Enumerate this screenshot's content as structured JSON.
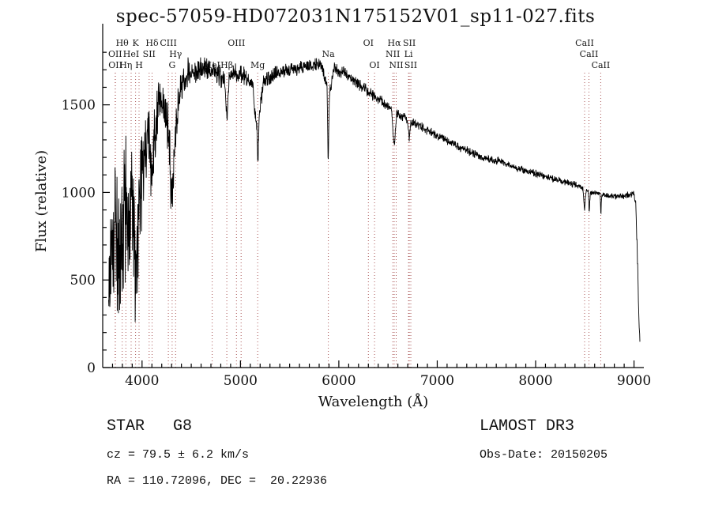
{
  "chart_data": {
    "type": "line",
    "title": "spec-57059-HD072031N175152V01_sp11-027.fits",
    "xlabel": "Wavelength (Å)",
    "ylabel": "Flux (relative)",
    "xlim": [
      3600,
      9100
    ],
    "ylim": [
      0,
      1900
    ],
    "xticks": [
      4000,
      5000,
      6000,
      7000,
      8000,
      9000
    ],
    "yticks": [
      0,
      500,
      1000,
      1500
    ],
    "grid": false,
    "legend": false,
    "line_color": "#000000",
    "marker_color": "#aa5555",
    "noise_seed": 20150205,
    "spectral_lines": [
      {
        "label": "Hθ",
        "wavelength": 3798,
        "row": 0
      },
      {
        "label": "K",
        "wavelength": 3934,
        "row": 0
      },
      {
        "label": "Hδ",
        "wavelength": 4102,
        "row": 0
      },
      {
        "label": "OII",
        "wavelength": 3727,
        "row": 1
      },
      {
        "label": "HeI",
        "wavelength": 3889,
        "row": 1
      },
      {
        "label": "SII",
        "wavelength": 4072,
        "row": 1
      },
      {
        "label": "OII",
        "wavelength": 3729,
        "row": 2
      },
      {
        "label": "Hη",
        "wavelength": 3835,
        "row": 2
      },
      {
        "label": "H",
        "wavelength": 3969,
        "row": 2
      },
      {
        "label": "CIII",
        "wavelength": 4267,
        "row": 0
      },
      {
        "label": "Hγ",
        "wavelength": 4341,
        "row": 1
      },
      {
        "label": "G",
        "wavelength": 4306,
        "row": 2
      },
      {
        "label": "OIII",
        "wavelength": 4959,
        "row": 0
      },
      {
        "label": "",
        "wavelength": 5007,
        "row": 0
      },
      {
        "label": "HeI",
        "wavelength": 4713,
        "row": 2
      },
      {
        "label": "Hβ",
        "wavelength": 4861,
        "row": 2
      },
      {
        "label": "Mg",
        "wavelength": 5175,
        "row": 2
      },
      {
        "label": "Na",
        "wavelength": 5893,
        "row": 1
      },
      {
        "label": "OI",
        "wavelength": 6300,
        "row": 0
      },
      {
        "label": "OI",
        "wavelength": 6363,
        "row": 2
      },
      {
        "label": "Hα",
        "wavelength": 6563,
        "row": 0
      },
      {
        "label": "SII",
        "wavelength": 6716,
        "row": 0
      },
      {
        "label": "NII",
        "wavelength": 6548,
        "row": 1
      },
      {
        "label": "Li",
        "wavelength": 6708,
        "row": 1
      },
      {
        "label": "NII",
        "wavelength": 6583,
        "row": 2
      },
      {
        "label": "SII",
        "wavelength": 6731,
        "row": 2
      },
      {
        "label": "CaII",
        "wavelength": 8498,
        "row": 0
      },
      {
        "label": "CaII",
        "wavelength": 8542,
        "row": 1
      },
      {
        "label": "CaII",
        "wavelength": 8662,
        "row": 2
      }
    ],
    "anchors": [
      [
        3660,
        400,
        380
      ],
      [
        3700,
        700,
        480
      ],
      [
        3740,
        850,
        520
      ],
      [
        3780,
        600,
        520
      ],
      [
        3820,
        950,
        520
      ],
      [
        3860,
        750,
        500
      ],
      [
        3900,
        1000,
        480
      ],
      [
        3935,
        550,
        420
      ],
      [
        3970,
        800,
        440
      ],
      [
        4010,
        1200,
        340
      ],
      [
        4060,
        1330,
        260
      ],
      [
        4100,
        1080,
        260
      ],
      [
        4150,
        1460,
        190
      ],
      [
        4210,
        1540,
        160
      ],
      [
        4260,
        1360,
        190
      ],
      [
        4300,
        1020,
        220
      ],
      [
        4340,
        1330,
        170
      ],
      [
        4390,
        1600,
        120
      ],
      [
        4450,
        1670,
        100
      ],
      [
        4550,
        1700,
        85
      ],
      [
        4650,
        1700,
        80
      ],
      [
        4750,
        1690,
        75
      ],
      [
        4840,
        1640,
        70
      ],
      [
        4861,
        1430,
        60
      ],
      [
        4885,
        1650,
        65
      ],
      [
        4950,
        1680,
        60
      ],
      [
        5050,
        1660,
        60
      ],
      [
        5120,
        1620,
        60
      ],
      [
        5168,
        1350,
        55
      ],
      [
        5177,
        1150,
        50
      ],
      [
        5190,
        1430,
        55
      ],
      [
        5230,
        1620,
        55
      ],
      [
        5320,
        1660,
        55
      ],
      [
        5420,
        1690,
        50
      ],
      [
        5520,
        1700,
        48
      ],
      [
        5620,
        1715,
        45
      ],
      [
        5720,
        1725,
        45
      ],
      [
        5820,
        1735,
        42
      ],
      [
        5880,
        1600,
        35
      ],
      [
        5892,
        1150,
        30
      ],
      [
        5904,
        1560,
        35
      ],
      [
        5950,
        1710,
        42
      ],
      [
        6050,
        1680,
        40
      ],
      [
        6150,
        1640,
        38
      ],
      [
        6250,
        1600,
        36
      ],
      [
        6350,
        1555,
        36
      ],
      [
        6450,
        1515,
        34
      ],
      [
        6535,
        1475,
        32
      ],
      [
        6563,
        1260,
        26
      ],
      [
        6590,
        1450,
        32
      ],
      [
        6700,
        1415,
        30
      ],
      [
        6716,
        1290,
        26
      ],
      [
        6732,
        1400,
        30
      ],
      [
        6800,
        1385,
        30
      ],
      [
        6900,
        1355,
        30
      ],
      [
        7000,
        1325,
        28
      ],
      [
        7100,
        1295,
        28
      ],
      [
        7200,
        1265,
        27
      ],
      [
        7300,
        1240,
        26
      ],
      [
        7400,
        1215,
        26
      ],
      [
        7500,
        1195,
        25
      ],
      [
        7600,
        1178,
        25
      ],
      [
        7650,
        1190,
        28
      ],
      [
        7700,
        1160,
        25
      ],
      [
        7800,
        1140,
        24
      ],
      [
        7900,
        1123,
        24
      ],
      [
        8000,
        1107,
        23
      ],
      [
        8100,
        1090,
        23
      ],
      [
        8200,
        1074,
        22
      ],
      [
        8300,
        1059,
        22
      ],
      [
        8400,
        1044,
        22
      ],
      [
        8480,
        1028,
        20
      ],
      [
        8498,
        905,
        18
      ],
      [
        8512,
        1012,
        18
      ],
      [
        8536,
        1008,
        18
      ],
      [
        8544,
        880,
        16
      ],
      [
        8556,
        1002,
        18
      ],
      [
        8605,
        998,
        18
      ],
      [
        8656,
        992,
        16
      ],
      [
        8663,
        868,
        15
      ],
      [
        8672,
        988,
        16
      ],
      [
        8750,
        982,
        20
      ],
      [
        8850,
        978,
        22
      ],
      [
        8950,
        988,
        25
      ],
      [
        9000,
        1000,
        28
      ],
      [
        9018,
        930,
        30
      ],
      [
        9035,
        620,
        40
      ],
      [
        9052,
        230,
        30
      ],
      [
        9062,
        140,
        20
      ]
    ]
  },
  "footer": {
    "object_type": "STAR   G8",
    "cz": "cz = 79.5 ± 6.2 km/s",
    "coords": "RA = 110.72096, DEC =  20.22936",
    "survey": "LAMOST DR3",
    "obs_date": "Obs-Date: 20150205"
  }
}
